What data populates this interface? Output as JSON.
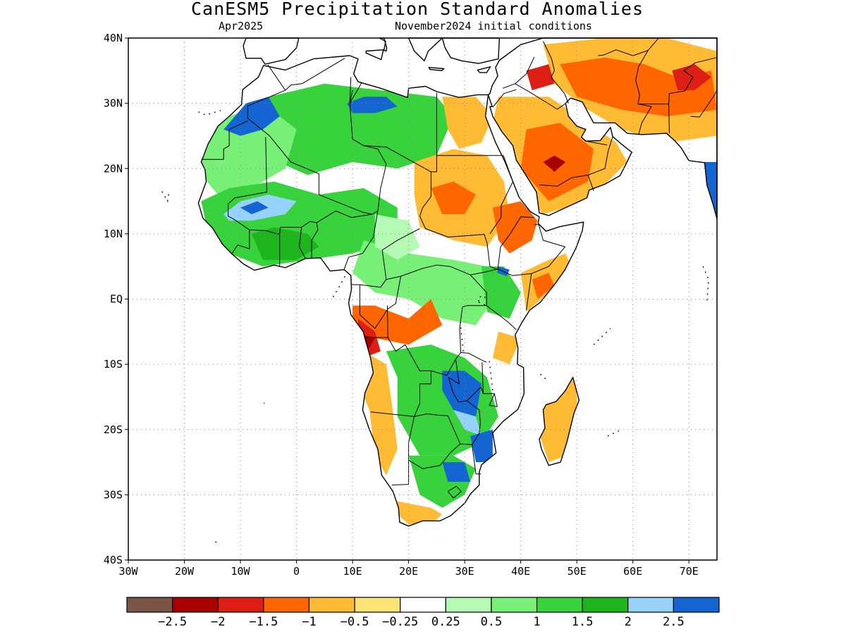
{
  "title": "CanESM5 Precipitation Standard Anomalies",
  "subtitle_left": "Apr2025",
  "subtitle_right": "November2024 initial conditions",
  "map": {
    "lon_range": [
      -30,
      75
    ],
    "lat_range": [
      -40,
      40
    ],
    "y_tick_labels": [
      {
        "lat": 40,
        "label": "40N"
      },
      {
        "lat": 30,
        "label": "30N"
      },
      {
        "lat": 20,
        "label": "20N"
      },
      {
        "lat": 10,
        "label": "10N"
      },
      {
        "lat": 0,
        "label": "EQ"
      },
      {
        "lat": -10,
        "label": "10S"
      },
      {
        "lat": -20,
        "label": "20S"
      },
      {
        "lat": -30,
        "label": "30S"
      },
      {
        "lat": -40,
        "label": "40S"
      }
    ],
    "x_tick_labels": [
      {
        "lon": -30,
        "label": "30W"
      },
      {
        "lon": -20,
        "label": "20W"
      },
      {
        "lon": -10,
        "label": "10W"
      },
      {
        "lon": 0,
        "label": "0"
      },
      {
        "lon": 10,
        "label": "10E"
      },
      {
        "lon": 20,
        "label": "20E"
      },
      {
        "lon": 30,
        "label": "30E"
      },
      {
        "lon": 40,
        "label": "40E"
      },
      {
        "lon": 50,
        "label": "50E"
      },
      {
        "lon": 60,
        "label": "60E"
      },
      {
        "lon": 70,
        "label": "70E"
      }
    ],
    "grid": "dotted"
  },
  "colorbar": {
    "colors": [
      "#7a5446",
      "#a80000",
      "#dc1e14",
      "#ff6600",
      "#ffbb33",
      "#ffe375",
      "#ffffff",
      "#b4fab4",
      "#78f078",
      "#37d23c",
      "#1eb41e",
      "#96d2fa",
      "#1464d2"
    ],
    "labels": [
      "-2.5",
      "-2",
      "-1.5",
      "-1",
      "-0.5",
      "-0.25",
      "0.25",
      "0.5",
      "1",
      "1.5",
      "2",
      "2.5"
    ]
  },
  "regions": [
    {
      "name": "sahara-north-green",
      "level": 9,
      "lonlat": [
        [
          -12,
          27
        ],
        [
          -5,
          31
        ],
        [
          5,
          33
        ],
        [
          15,
          32
        ],
        [
          25,
          31
        ],
        [
          28,
          28
        ],
        [
          25,
          22
        ],
        [
          18,
          20
        ],
        [
          10,
          21
        ],
        [
          2,
          19
        ],
        [
          -6,
          22
        ],
        [
          -12,
          24
        ]
      ]
    },
    {
      "name": "sahara-west-green",
      "level": 8,
      "lonlat": [
        [
          -17,
          24
        ],
        [
          -12,
          28
        ],
        [
          -6,
          30
        ],
        [
          0,
          26
        ],
        [
          -2,
          20
        ],
        [
          -8,
          17
        ],
        [
          -14,
          16
        ],
        [
          -17,
          19
        ]
      ]
    },
    {
      "name": "morocco-blue",
      "level": 12,
      "lonlat": [
        [
          -13,
          26
        ],
        [
          -9,
          30
        ],
        [
          -5,
          31
        ],
        [
          -3,
          28
        ],
        [
          -6,
          26
        ],
        [
          -10,
          25
        ]
      ]
    },
    {
      "name": "libya-blue",
      "level": 12,
      "lonlat": [
        [
          9,
          30
        ],
        [
          12,
          31
        ],
        [
          16,
          31
        ],
        [
          18,
          29.5
        ],
        [
          14,
          28.5
        ],
        [
          10,
          28.5
        ]
      ]
    },
    {
      "name": "sahel-green",
      "level": 9,
      "lonlat": [
        [
          -17,
          15
        ],
        [
          -12,
          17
        ],
        [
          -4,
          18
        ],
        [
          4,
          16
        ],
        [
          12,
          17
        ],
        [
          18,
          14
        ],
        [
          18,
          9
        ],
        [
          10,
          7
        ],
        [
          2,
          6
        ],
        [
          -6,
          5
        ],
        [
          -12,
          7
        ],
        [
          -16,
          11
        ]
      ]
    },
    {
      "name": "sahel-lightblue",
      "level": 11,
      "lonlat": [
        [
          -13,
          13
        ],
        [
          -10,
          15
        ],
        [
          -5,
          16
        ],
        [
          0,
          15
        ],
        [
          -2,
          13
        ],
        [
          -8,
          12
        ],
        [
          -12,
          12
        ]
      ]
    },
    {
      "name": "sahel-blue",
      "level": 12,
      "lonlat": [
        [
          -10,
          14
        ],
        [
          -7,
          15
        ],
        [
          -5,
          14
        ],
        [
          -8,
          13
        ]
      ]
    },
    {
      "name": "gulf-of-guinea-green",
      "level": 10,
      "lonlat": [
        [
          -8,
          10
        ],
        [
          -4,
          11
        ],
        [
          2,
          10
        ],
        [
          4,
          8
        ],
        [
          0,
          6
        ],
        [
          -6,
          6
        ]
      ]
    },
    {
      "name": "central-africa-green",
      "level": 8,
      "lonlat": [
        [
          12,
          9
        ],
        [
          20,
          7
        ],
        [
          28,
          6
        ],
        [
          34,
          5
        ],
        [
          36,
          1
        ],
        [
          32,
          -4
        ],
        [
          26,
          -3
        ],
        [
          20,
          0
        ],
        [
          14,
          1
        ],
        [
          10,
          4
        ]
      ]
    },
    {
      "name": "central-lightgreen",
      "level": 7,
      "lonlat": [
        [
          14,
          13
        ],
        [
          20,
          12
        ],
        [
          22,
          8
        ],
        [
          18,
          6
        ],
        [
          14,
          8
        ]
      ]
    },
    {
      "name": "sudan-orange",
      "level": 4,
      "lonlat": [
        [
          21,
          21
        ],
        [
          28,
          23
        ],
        [
          34,
          22
        ],
        [
          37,
          18
        ],
        [
          38,
          13
        ],
        [
          34,
          8
        ],
        [
          28,
          9
        ],
        [
          22,
          11
        ],
        [
          21,
          16
        ]
      ]
    },
    {
      "name": "sudan-red",
      "level": 3,
      "lonlat": [
        [
          24,
          17
        ],
        [
          28,
          18
        ],
        [
          32,
          16
        ],
        [
          30,
          13
        ],
        [
          26,
          13
        ]
      ]
    },
    {
      "name": "egypt-orange",
      "level": 4,
      "lonlat": [
        [
          26,
          31
        ],
        [
          32,
          31
        ],
        [
          35,
          28
        ],
        [
          33,
          24
        ],
        [
          29,
          23
        ],
        [
          27,
          26
        ]
      ]
    },
    {
      "name": "ethiopia-red",
      "level": 3,
      "lonlat": [
        [
          35,
          14
        ],
        [
          40,
          15
        ],
        [
          43,
          12
        ],
        [
          42,
          9
        ],
        [
          38,
          7
        ],
        [
          36,
          9
        ]
      ]
    },
    {
      "name": "somalia-orange",
      "level": 4,
      "lonlat": [
        [
          40,
          4
        ],
        [
          45,
          6
        ],
        [
          48,
          7
        ],
        [
          49,
          5
        ],
        [
          45,
          1
        ],
        [
          41,
          -2
        ]
      ]
    },
    {
      "name": "somalia-red",
      "level": 3,
      "lonlat": [
        [
          42,
          3
        ],
        [
          45,
          4
        ],
        [
          46,
          2
        ],
        [
          43,
          0
        ]
      ]
    },
    {
      "name": "arabia-orange",
      "level": 4,
      "lonlat": [
        [
          36,
          31
        ],
        [
          45,
          31
        ],
        [
          52,
          27
        ],
        [
          57,
          24
        ],
        [
          59,
          21
        ],
        [
          52,
          15
        ],
        [
          44,
          13
        ],
        [
          39,
          18
        ],
        [
          35,
          27
        ]
      ]
    },
    {
      "name": "arabia-red",
      "level": 3,
      "lonlat": [
        [
          41,
          26
        ],
        [
          47,
          27
        ],
        [
          53,
          23
        ],
        [
          52,
          18
        ],
        [
          45,
          15
        ],
        [
          40,
          20
        ]
      ]
    },
    {
      "name": "arabia-brown",
      "level": 1,
      "lonlat": [
        [
          44,
          21
        ],
        [
          46,
          22
        ],
        [
          48,
          21
        ],
        [
          46,
          19.5
        ]
      ]
    },
    {
      "name": "iran-orange",
      "level": 4,
      "lonlat": [
        [
          44,
          39
        ],
        [
          55,
          40
        ],
        [
          66,
          40
        ],
        [
          75,
          38
        ],
        [
          75,
          25
        ],
        [
          66,
          24
        ],
        [
          58,
          26
        ],
        [
          52,
          29
        ],
        [
          46,
          33
        ]
      ]
    },
    {
      "name": "iran-red",
      "level": 3,
      "lonlat": [
        [
          47,
          36
        ],
        [
          55,
          37
        ],
        [
          62,
          36
        ],
        [
          68,
          34
        ],
        [
          74,
          35
        ],
        [
          75,
          29
        ],
        [
          66,
          28
        ],
        [
          58,
          29
        ],
        [
          50,
          31
        ]
      ]
    },
    {
      "name": "iran-darkred",
      "level": 2,
      "lonlat": [
        [
          67,
          35
        ],
        [
          71,
          36
        ],
        [
          74,
          34
        ],
        [
          71,
          32
        ],
        [
          68,
          32
        ]
      ]
    },
    {
      "name": "iraq-darkred",
      "level": 2,
      "lonlat": [
        [
          41,
          35
        ],
        [
          45,
          36
        ],
        [
          46,
          33
        ],
        [
          42,
          32
        ]
      ]
    },
    {
      "name": "congo-red",
      "level": 3,
      "lonlat": [
        [
          10,
          -1
        ],
        [
          14,
          -1
        ],
        [
          20,
          -3
        ],
        [
          24,
          0
        ],
        [
          26,
          -4
        ],
        [
          20,
          -7
        ],
        [
          14,
          -6
        ],
        [
          10,
          -3
        ]
      ]
    },
    {
      "name": "angola-coast-darkred",
      "level": 2,
      "lonlat": [
        [
          11,
          -3
        ],
        [
          14,
          -5
        ],
        [
          15,
          -8
        ],
        [
          12,
          -9
        ],
        [
          11,
          -6
        ]
      ]
    },
    {
      "name": "angola-coast-brown",
      "level": 1,
      "lonlat": [
        [
          12,
          -5.5
        ],
        [
          14,
          -6
        ],
        [
          13,
          -7.5
        ],
        [
          11.8,
          -7
        ]
      ]
    },
    {
      "name": "angola-orange",
      "level": 4,
      "lonlat": [
        [
          12,
          -8
        ],
        [
          16,
          -10
        ],
        [
          17,
          -16
        ],
        [
          18,
          -23
        ],
        [
          16,
          -27
        ],
        [
          14,
          -24
        ],
        [
          13,
          -17
        ],
        [
          11,
          -13
        ]
      ]
    },
    {
      "name": "zambia-green",
      "level": 9,
      "lonlat": [
        [
          16,
          -8
        ],
        [
          24,
          -7
        ],
        [
          30,
          -9
        ],
        [
          34,
          -12
        ],
        [
          36,
          -18
        ],
        [
          33,
          -22
        ],
        [
          28,
          -24
        ],
        [
          22,
          -24
        ],
        [
          18,
          -18
        ],
        [
          18,
          -12
        ]
      ]
    },
    {
      "name": "zambia-blue",
      "level": 12,
      "lonlat": [
        [
          26,
          -11
        ],
        [
          30,
          -11
        ],
        [
          33,
          -13
        ],
        [
          32,
          -18
        ],
        [
          28,
          -17
        ],
        [
          26,
          -14
        ]
      ]
    },
    {
      "name": "zambia-lightblue",
      "level": 11,
      "lonlat": [
        [
          28,
          -17
        ],
        [
          32,
          -18
        ],
        [
          33,
          -21
        ],
        [
          30,
          -20
        ]
      ]
    },
    {
      "name": "mozambique-blue",
      "level": 12,
      "lonlat": [
        [
          31,
          -21
        ],
        [
          35,
          -20
        ],
        [
          35,
          -25
        ],
        [
          32,
          -25
        ]
      ]
    },
    {
      "name": "south-africa-green",
      "level": 9,
      "lonlat": [
        [
          20,
          -24
        ],
        [
          28,
          -24
        ],
        [
          32,
          -26
        ],
        [
          30,
          -30
        ],
        [
          26,
          -32
        ],
        [
          22,
          -30
        ]
      ]
    },
    {
      "name": "south-africa-blue",
      "level": 12,
      "lonlat": [
        [
          26,
          -25
        ],
        [
          30,
          -25
        ],
        [
          31,
          -28
        ],
        [
          27,
          -28
        ]
      ]
    },
    {
      "name": "cape-orange",
      "level": 4,
      "lonlat": [
        [
          18,
          -31
        ],
        [
          24,
          -32
        ],
        [
          26,
          -33
        ],
        [
          24,
          -34.5
        ],
        [
          20,
          -34.5
        ],
        [
          18,
          -33
        ]
      ]
    },
    {
      "name": "madagascar-orange",
      "level": 4,
      "lonlat": [
        [
          44,
          -13
        ],
        [
          50,
          -12
        ],
        [
          50,
          -18
        ],
        [
          48,
          -24
        ],
        [
          45,
          -25
        ],
        [
          43,
          -20
        ]
      ]
    },
    {
      "name": "kenya-green",
      "level": 9,
      "lonlat": [
        [
          33,
          5
        ],
        [
          37,
          5
        ],
        [
          40,
          1
        ],
        [
          38,
          -3
        ],
        [
          34,
          -2
        ]
      ]
    },
    {
      "name": "kenya-blue",
      "level": 12,
      "lonlat": [
        [
          36,
          5
        ],
        [
          38,
          4.5
        ],
        [
          37.5,
          3.5
        ],
        [
          35.8,
          4
        ]
      ]
    },
    {
      "name": "tanzania-orange",
      "level": 4,
      "lonlat": [
        [
          36,
          -5
        ],
        [
          40,
          -6
        ],
        [
          38,
          -10
        ],
        [
          35,
          -9
        ]
      ]
    },
    {
      "name": "india-blue",
      "level": 12,
      "lonlat": [
        [
          72,
          21
        ],
        [
          75,
          21
        ],
        [
          75,
          13
        ],
        [
          73,
          14
        ]
      ]
    }
  ]
}
